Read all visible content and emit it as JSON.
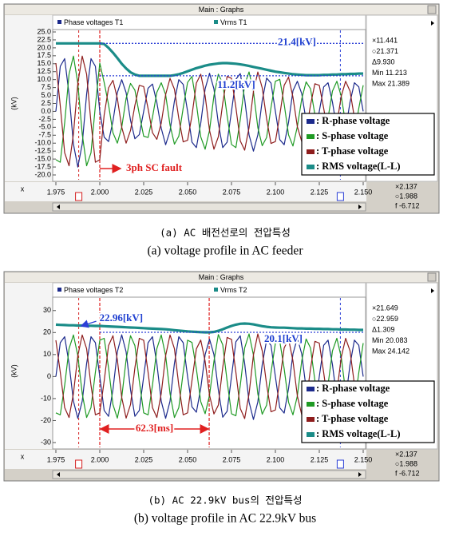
{
  "chart_data": [
    {
      "type": "line",
      "window_title": "Main : Graphs",
      "channels": [
        "Phase voltages T1",
        "Vrms T1"
      ],
      "y_label": "(kV)",
      "x_label": "x",
      "readouts": [
        "×11.441",
        "○21.371",
        "Δ9.930",
        "Min 11.213",
        "Max 21.389"
      ],
      "x_cursors": [
        {
          "value": 2.137,
          "label": "×2.137"
        },
        {
          "value": 1.988,
          "label": "○1.988"
        }
      ],
      "x_cursor_colors": [
        "#2b3fd6",
        "#d42020"
      ],
      "cursor_delta": "f -6.712",
      "xlim": [
        1.975,
        2.15
      ],
      "xticks": [
        1.975,
        {
          "value": 2.0,
          "label": "2.000"
        },
        2.025,
        {
          "value": 2.05,
          "label": "2.050"
        },
        2.075,
        {
          "value": 2.1,
          "label": "2.100"
        },
        2.125,
        {
          "value": 2.15,
          "label": "2.150"
        }
      ],
      "ylim": [
        -20,
        25
      ],
      "yticks": [
        {
          "value": 25,
          "label": "25.0"
        },
        {
          "value": 22.5,
          "label": "22.5"
        },
        {
          "value": 20,
          "label": "20.0"
        },
        {
          "value": 17.5,
          "label": "17.5"
        },
        {
          "value": 15,
          "label": "15.0"
        },
        {
          "value": 12.5,
          "label": "12.5"
        },
        {
          "value": 10,
          "label": "10.0"
        },
        {
          "value": 7.5,
          "label": "7.5"
        },
        {
          "value": 5,
          "label": "5.0"
        },
        {
          "value": 2.5,
          "label": "2.5"
        },
        {
          "value": 0,
          "label": "0.0"
        },
        {
          "value": -2.5,
          "label": "-2.5"
        },
        {
          "value": -5,
          "label": "-5.0"
        },
        {
          "value": -7.5,
          "label": "-7.5"
        },
        {
          "value": -10,
          "label": "-10.0"
        },
        {
          "value": -12.5,
          "label": "-12.5"
        },
        {
          "value": -15,
          "label": "-15.0"
        },
        {
          "value": -17.5,
          "label": "-17.5"
        },
        {
          "value": -20,
          "label": "-20.0"
        }
      ],
      "grid": false,
      "x": [
        1.975,
        1.9775,
        1.98,
        1.9825,
        1.985,
        1.9875,
        1.99,
        1.9925,
        1.995,
        1.9975,
        2.0,
        2.0025,
        2.005,
        2.0075,
        2.01,
        2.0125,
        2.015,
        2.0175,
        2.02,
        2.0225,
        2.025,
        2.0275,
        2.03,
        2.0325,
        2.035,
        2.0375,
        2.04,
        2.0425,
        2.045,
        2.0475,
        2.05,
        2.0525,
        2.055,
        2.0575,
        2.06,
        2.0625,
        2.065,
        2.0675,
        2.07,
        2.0725,
        2.075,
        2.0775,
        2.08,
        2.0825,
        2.085,
        2.0875,
        2.09,
        2.0925,
        2.095,
        2.0975,
        2.1,
        2.1025,
        2.105,
        2.1075,
        2.11,
        2.1125,
        2.115,
        2.1175,
        2.12,
        2.1225,
        2.125,
        2.1275,
        2.13,
        2.1325,
        2.135,
        2.1375,
        2.14,
        2.1425,
        2.145,
        2.1475,
        2.15
      ],
      "series": [
        {
          "name": ": R-phase voltage",
          "color": "#1c2a8c",
          "width": 1.2,
          "values": [
            0,
            14.2,
            16.6,
            5.4,
            -10.3,
            -17.5,
            -10.3,
            5.4,
            16.6,
            14.2,
            0,
            -8.1,
            -9.5,
            -3.1,
            5.9,
            10,
            5.9,
            -2.8,
            -8.6,
            -7.3,
            0,
            7.3,
            8.6,
            2.8,
            -5.3,
            -10.5,
            -6.2,
            3.2,
            10.0,
            8.5,
            0,
            -9.7,
            -11.4,
            -3.7,
            7.1,
            12.0,
            7.1,
            -3.7,
            -11.4,
            -9.7,
            0,
            10.1,
            11.9,
            3.9,
            -7.4,
            -12.5,
            -7.4,
            3.4,
            10.5,
            8.9,
            0,
            -8.9,
            -10.5,
            -3.4,
            6.5,
            9.5,
            5.6,
            -2.9,
            -9.0,
            -7.7,
            0,
            7.7,
            9.0,
            2.9,
            -5.6,
            -9.5,
            -5.6,
            2.9,
            9.0,
            7.7,
            0
          ]
        },
        {
          "name": ": S-phase voltage",
          "color": "#1f9a24",
          "width": 1.2,
          "values": [
            -15.2,
            -16.0,
            -3.6,
            11.7,
            17.4,
            8.8,
            -7.1,
            -17.1,
            -13.0,
            1.8,
            15.2,
            9.1,
            2.1,
            -6.7,
            -10.0,
            -5.0,
            4.1,
            8.8,
            6.7,
            -0.9,
            -7.8,
            -8.2,
            -1.9,
            6.0,
            9.0,
            5.3,
            -4.3,
            -10.3,
            -7.8,
            1.1,
            9.1,
            11.0,
            2.5,
            -8.0,
            -11.9,
            -6.0,
            4.9,
            11.7,
            8.9,
            -1.3,
            -10.4,
            -11.4,
            -2.6,
            8.4,
            12.4,
            6.3,
            -5.1,
            -10.8,
            -8.2,
            1.2,
            9.5,
            10.1,
            2.3,
            -7.4,
            -10.9,
            -4.8,
            3.9,
            9.3,
            7.1,
            -1.0,
            -8.2,
            -8.7,
            -2.0,
            6.4,
            9.5,
            4.8,
            -3.9,
            -9.3,
            -7.1,
            1.0,
            8.2
          ]
        },
        {
          "name": ": T-phase voltage",
          "color": "#8e1d1d",
          "width": 1.2,
          "values": [
            15.2,
            1.8,
            -13.0,
            -17.1,
            -7.1,
            8.8,
            17.4,
            11.7,
            -3.6,
            -16.0,
            -15.2,
            -1.1,
            7.4,
            9.8,
            4.1,
            -5.0,
            -10.0,
            -6.0,
            1.9,
            8.2,
            7.8,
            0.9,
            -6.7,
            -8.8,
            -3.7,
            5.3,
            10.4,
            7.0,
            -2.2,
            -9.6,
            -9.1,
            -1.3,
            8.9,
            11.7,
            4.9,
            -6.0,
            -11.9,
            -8.0,
            2.5,
            11.0,
            10.4,
            1.3,
            -9.3,
            -12.2,
            -5.1,
            6.3,
            12.4,
            7.4,
            -2.3,
            -10.1,
            -9.5,
            -1.2,
            8.2,
            10.8,
            4.5,
            -4.8,
            -9.5,
            -6.4,
            2.0,
            8.7,
            8.2,
            1.0,
            -7.1,
            -9.3,
            -3.9,
            4.8,
            9.5,
            6.4,
            -2.0,
            -8.7,
            -8.2
          ]
        },
        {
          "name": ": RMS voltage(L-L)",
          "color": "#1b8c88",
          "width": 3.2,
          "values": [
            21.4,
            21.4,
            21.4,
            21.4,
            21.4,
            21.4,
            21.4,
            21.4,
            21.4,
            21.4,
            21.4,
            21.2,
            20.0,
            18.5,
            16.8,
            15.0,
            13.5,
            12.3,
            11.6,
            11.2,
            11.2,
            11.2,
            11.2,
            11.2,
            11.2,
            11.2,
            11.2,
            11.4,
            11.7,
            12.1,
            12.6,
            13.1,
            13.6,
            14.0,
            14.4,
            14.7,
            14.9,
            15.1,
            15.2,
            15.2,
            15.1,
            15.0,
            14.8,
            14.6,
            14.3,
            14.0,
            13.7,
            13.4,
            13.1,
            12.8,
            12.5,
            12.3,
            12.1,
            11.9,
            11.7,
            11.6,
            11.5,
            11.4,
            11.4,
            11.4,
            11.4,
            11.5,
            11.5,
            11.6,
            11.6,
            11.7,
            11.7,
            11.8,
            11.8,
            11.9,
            11.9
          ]
        }
      ],
      "ref_lines": [
        {
          "y": 21.4,
          "label": "21.4[kV]"
        },
        {
          "y": 11.2,
          "label": "11.2[kV]"
        }
      ],
      "fault": {
        "x": 2.0,
        "label": "3ph SC fault"
      },
      "caption": [
        "(a) AC 배전선로의 전압특성",
        "(a) voltage profile in AC feeder"
      ]
    },
    {
      "type": "line",
      "window_title": "Main : Graphs",
      "channels": [
        "Phase voltages T2",
        "Vrms T2"
      ],
      "y_label": "(kV)",
      "x_label": "x",
      "readouts": [
        "×21.649",
        "○22.959",
        "Δ1.309",
        "Min 20.083",
        "Max 24.142"
      ],
      "x_cursors": [
        {
          "value": 2.137,
          "label": "×2.137"
        },
        {
          "value": 1.988,
          "label": "○1.988"
        }
      ],
      "x_cursor_colors": [
        "#2b3fd6",
        "#d42020"
      ],
      "cursor_delta": "f -6.712",
      "xlim": [
        1.975,
        2.15
      ],
      "xticks": [
        1.975,
        {
          "value": 2.0,
          "label": "2.000"
        },
        2.025,
        {
          "value": 2.05,
          "label": "2.050"
        },
        2.075,
        {
          "value": 2.1,
          "label": "2.100"
        },
        2.125,
        {
          "value": 2.15,
          "label": "2.150"
        }
      ],
      "ylim": [
        -30,
        35
      ],
      "yticks": [
        30,
        20,
        10,
        0,
        -10,
        -20,
        -30
      ],
      "grid": false,
      "x": [
        1.975,
        1.9775,
        1.98,
        1.9825,
        1.985,
        1.9875,
        1.99,
        1.9925,
        1.995,
        1.9975,
        2.0,
        2.0025,
        2.005,
        2.0075,
        2.01,
        2.0125,
        2.015,
        2.0175,
        2.02,
        2.0225,
        2.025,
        2.0275,
        2.03,
        2.0325,
        2.035,
        2.0375,
        2.04,
        2.0425,
        2.045,
        2.0475,
        2.05,
        2.0525,
        2.055,
        2.0575,
        2.06,
        2.0625,
        2.065,
        2.0675,
        2.07,
        2.0725,
        2.075,
        2.0775,
        2.08,
        2.0825,
        2.085,
        2.0875,
        2.09,
        2.0925,
        2.095,
        2.0975,
        2.1,
        2.1025,
        2.105,
        2.1075,
        2.11,
        2.1125,
        2.115,
        2.1175,
        2.12,
        2.1225,
        2.125,
        2.1275,
        2.13,
        2.1325,
        2.135,
        2.1375,
        2.14,
        2.1425,
        2.145,
        2.1475,
        2.15
      ],
      "series": [
        {
          "name": ": R-phase voltage",
          "color": "#1c2a8c",
          "width": 1.2,
          "values": [
            0,
            15.4,
            18.1,
            5.9,
            -11.2,
            -19,
            -11.2,
            5.9,
            18.1,
            15.4,
            0,
            -15.4,
            -18.1,
            -5.9,
            11.2,
            19,
            11.2,
            -5.9,
            -18.1,
            -15.4,
            0,
            15.4,
            18.1,
            5.9,
            -11.2,
            -19,
            -11.2,
            5.9,
            18.1,
            15.4,
            0,
            -13.8,
            -16.2,
            -5.3,
            10.0,
            17,
            10.0,
            -6.0,
            -18.5,
            -15.8,
            0,
            15.8,
            18.5,
            6.0,
            -11.5,
            -19.5,
            -11.5,
            5.4,
            16.6,
            14.2,
            0,
            -14.2,
            -16.6,
            -5.4,
            10.3,
            17.5,
            10.3,
            -5.4,
            -16.6,
            -14.2,
            0,
            14.2,
            16.6,
            5.4,
            -10.3,
            -17.5,
            -10.3,
            5.4,
            16.6,
            14.2,
            0
          ]
        },
        {
          "name": ": S-phase voltage",
          "color": "#1f9a24",
          "width": 1.2,
          "values": [
            -16.5,
            -17.4,
            -4.0,
            12.7,
            18.9,
            9.5,
            -7.7,
            -18.6,
            -14.1,
            2.0,
            16.5,
            17.4,
            4.0,
            -12.7,
            -18.9,
            -9.5,
            7.7,
            18.6,
            14.1,
            -2.0,
            -16.5,
            -17.4,
            -4.0,
            12.7,
            18.9,
            9.5,
            -7.7,
            -18.6,
            -14.1,
            2.0,
            16.5,
            15.5,
            3.5,
            -11.4,
            -16.9,
            -8.5,
            6.9,
            19.1,
            14.5,
            -2.0,
            -16.9,
            -17.8,
            -4.1,
            13.0,
            19.4,
            9.8,
            -7.9,
            -17.1,
            -13.0,
            1.8,
            15.2,
            16.0,
            3.6,
            -11.7,
            -17.4,
            -8.8,
            7.1,
            17.1,
            13.0,
            -1.8,
            -15.2,
            -16.0,
            -3.6,
            11.7,
            17.4,
            8.8,
            -7.1,
            -17.1,
            -13.0,
            1.8,
            15.2
          ]
        },
        {
          "name": ": T-phase voltage",
          "color": "#8e1d1d",
          "width": 1.2,
          "values": [
            16.5,
            2.0,
            -14.1,
            -18.6,
            -7.7,
            9.5,
            18.9,
            12.7,
            -4.0,
            -17.4,
            -16.5,
            -2.0,
            14.1,
            18.6,
            7.7,
            -9.5,
            -18.9,
            -12.7,
            4.0,
            17.4,
            16.5,
            2.0,
            -14.1,
            -18.6,
            -7.7,
            9.5,
            18.9,
            12.7,
            -4.0,
            -17.4,
            -16.5,
            -1.8,
            12.6,
            16.6,
            6.9,
            -8.5,
            -17.0,
            -13.0,
            4.1,
            17.8,
            16.9,
            2.0,
            -14.5,
            -19.1,
            -7.9,
            9.8,
            19.4,
            11.7,
            -3.6,
            -16.0,
            -15.2,
            -1.8,
            13.0,
            17.1,
            7.1,
            -8.8,
            -17.4,
            -11.7,
            3.6,
            16.0,
            15.2,
            1.8,
            -13.0,
            -17.1,
            -7.1,
            8.8,
            17.4,
            11.7,
            -3.6,
            -16.0,
            -15.2
          ]
        },
        {
          "name": ": RMS voltage(L-L)",
          "color": "#1b8c88",
          "width": 3.2,
          "values": [
            23.6,
            23.5,
            23.4,
            23.3,
            23.3,
            23.2,
            23.2,
            23.1,
            23.1,
            23.0,
            23.0,
            22.9,
            22.8,
            22.7,
            22.6,
            22.5,
            22.4,
            22.3,
            22.2,
            22.1,
            22.0,
            21.9,
            21.8,
            21.7,
            21.6,
            21.5,
            21.3,
            21.1,
            20.9,
            20.7,
            20.5,
            20.4,
            20.3,
            20.2,
            20.1,
            20.1,
            20.3,
            20.8,
            21.5,
            22.3,
            23.0,
            23.6,
            24.0,
            24.1,
            24.0,
            23.7,
            23.3,
            22.9,
            22.6,
            22.4,
            22.3,
            22.2,
            22.2,
            22.1,
            22.0,
            21.9,
            21.9,
            21.8,
            21.8,
            21.7,
            21.7,
            21.6,
            21.6,
            21.5,
            21.5,
            21.4,
            21.4,
            21.3,
            21.3,
            21.2,
            21.2
          ]
        }
      ],
      "ref_lines": [
        {
          "y": 20.1,
          "label": "20.1[kV]"
        }
      ],
      "arrow_annotation": {
        "y": 22.96,
        "label": "22.96[kV]"
      },
      "interval": {
        "x": [
          2.0,
          2.0623
        ],
        "label": "62.3[ms]"
      },
      "caption": [
        "(b) AC 22.9kV bus의 전압특성",
        "(b) voltage profile in AC 22.9kV bus"
      ]
    }
  ]
}
